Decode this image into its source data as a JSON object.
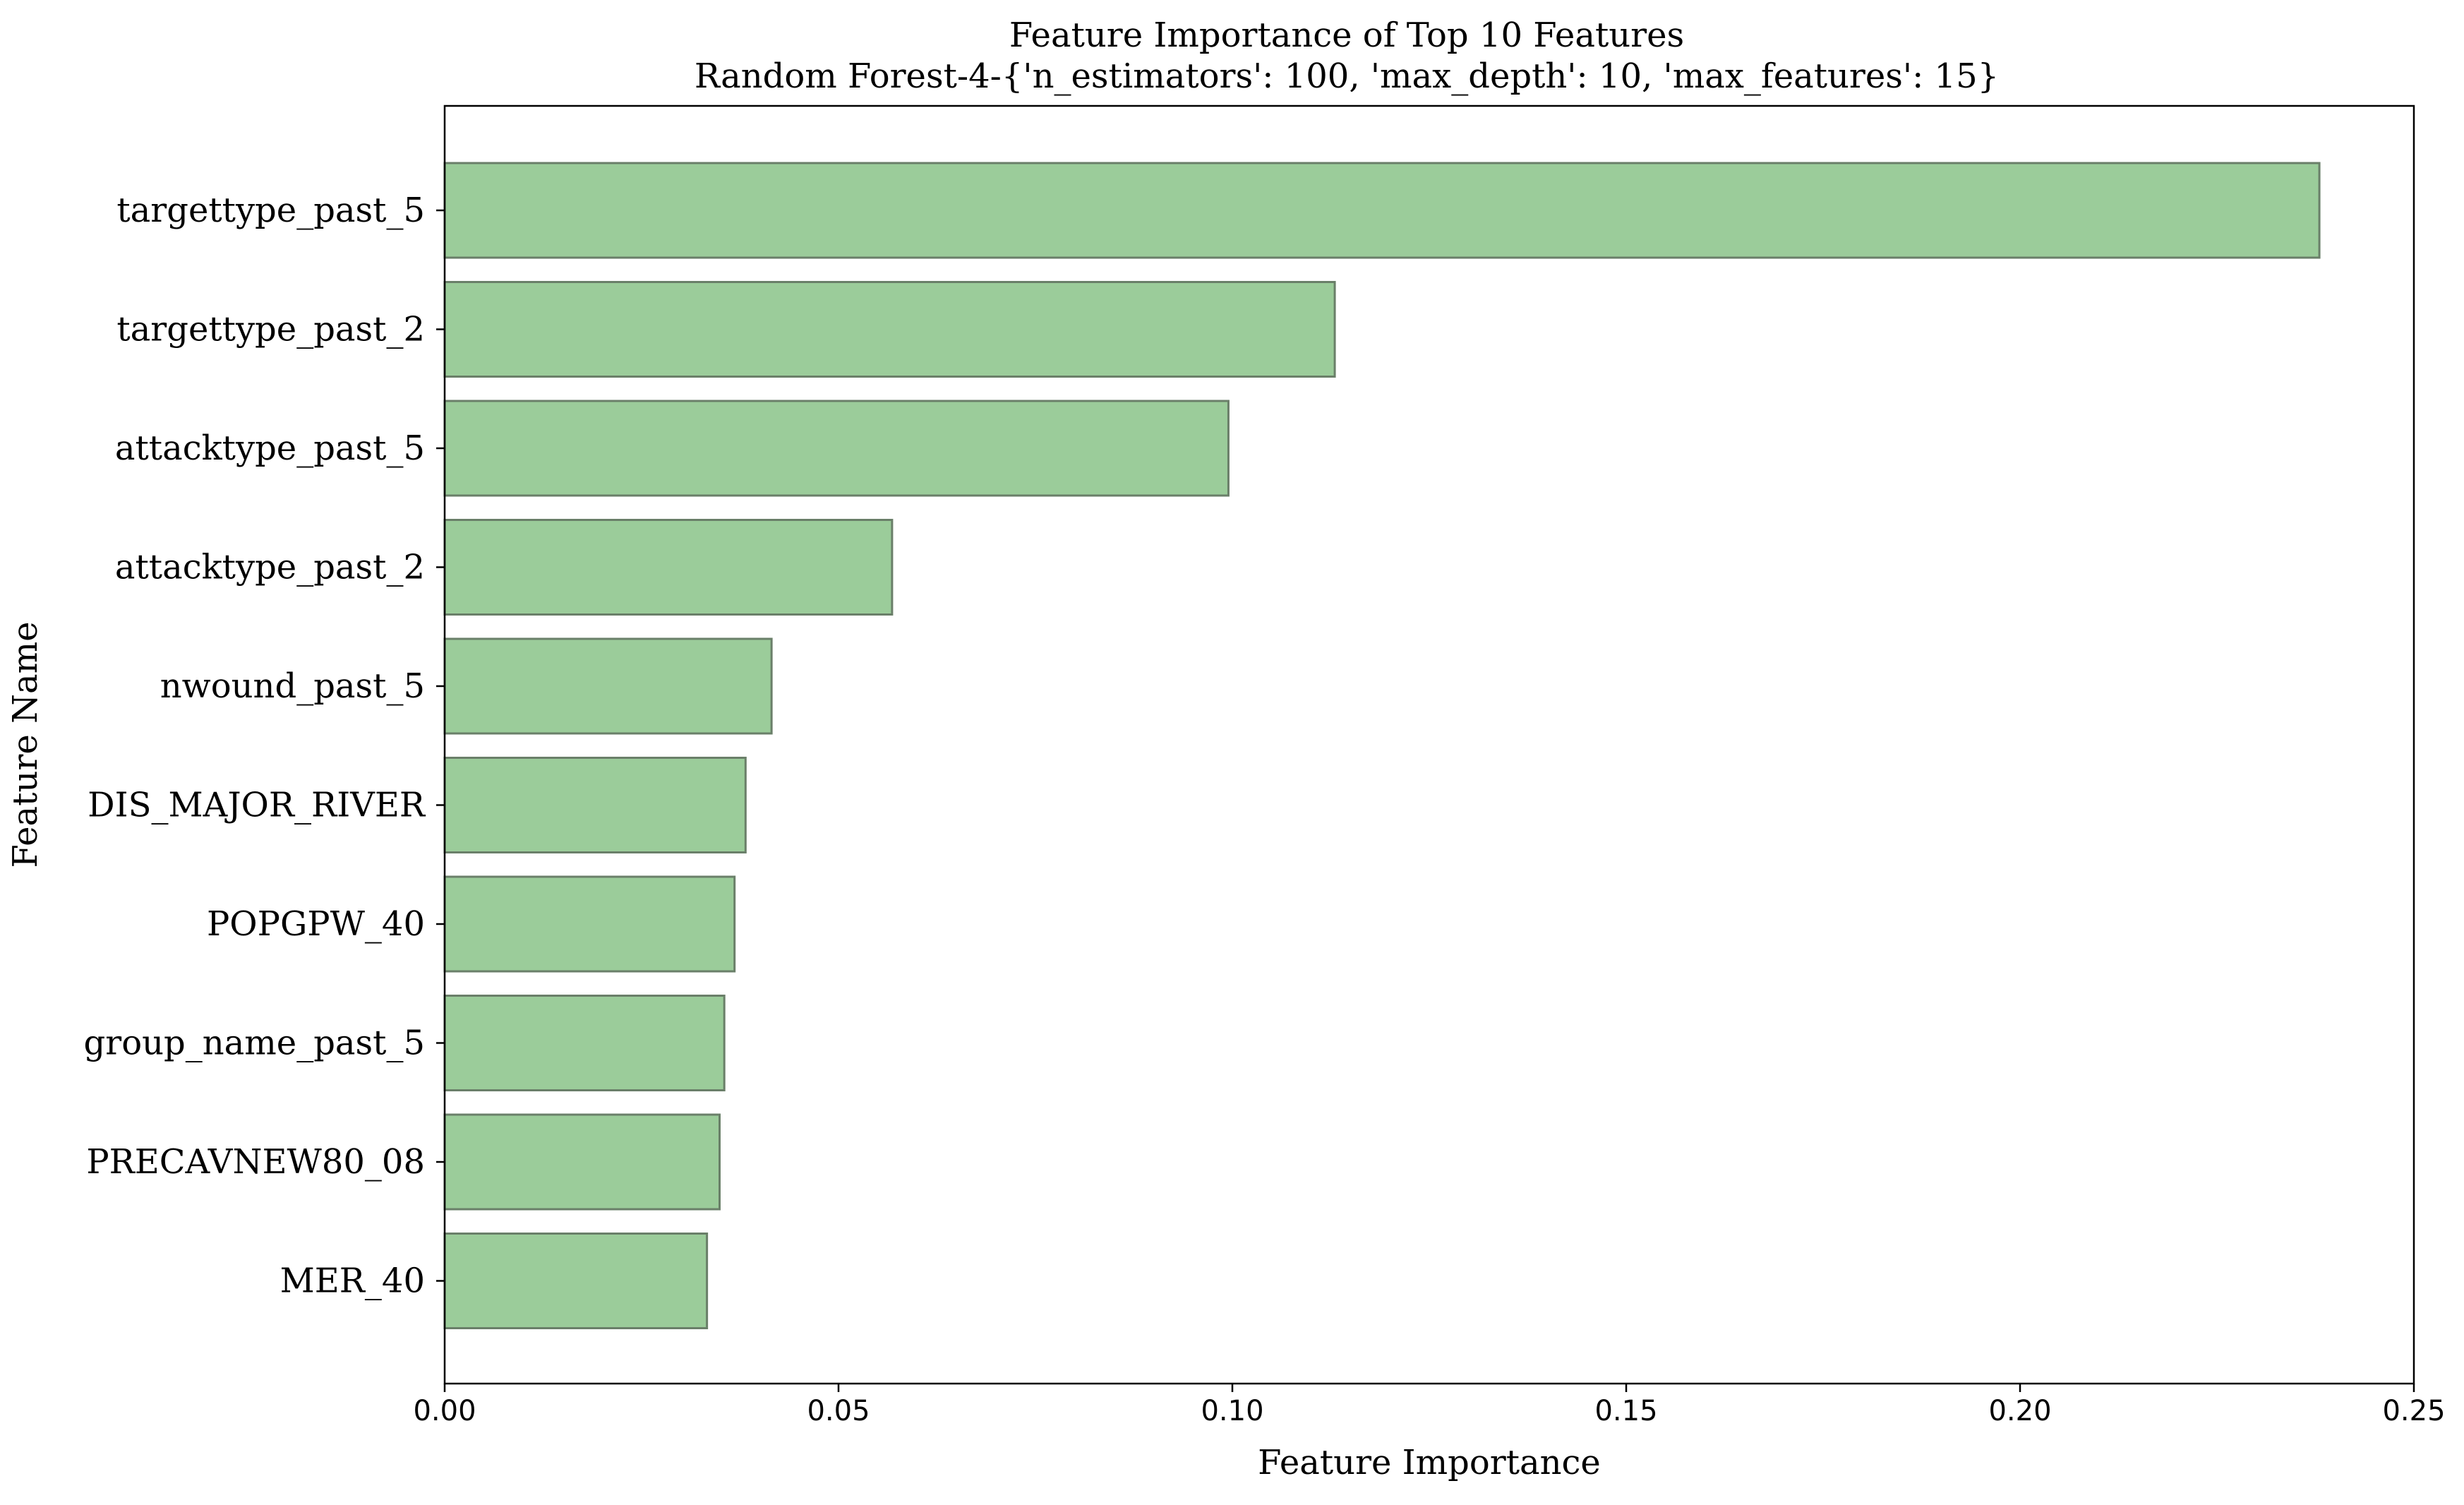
{
  "chart_data": {
    "type": "bar",
    "orientation": "horizontal",
    "title": "Feature Importance of Top 10 Features",
    "subtitle": "Random Forest-4-{'n_estimators': 100, 'max_depth': 10, 'max_features': 15}",
    "xlabel": "Feature Importance",
    "ylabel": "Feature Name",
    "categories": [
      "targettype_past_5",
      "targettype_past_2",
      "attacktype_past_5",
      "attacktype_past_2",
      "nwound_past_5",
      "DIS_MAJOR_RIVER",
      "POPGPW_40",
      "group_name_past_5",
      "PRECAVNEW80_08",
      "MER_40"
    ],
    "values": [
      0.238,
      0.113,
      0.0995,
      0.0568,
      0.0415,
      0.0382,
      0.0368,
      0.0355,
      0.0349,
      0.0333
    ],
    "xlim": [
      0,
      0.25
    ],
    "xticks": [
      "0.00",
      "0.05",
      "0.10",
      "0.15",
      "0.20",
      "0.25"
    ],
    "grid": false,
    "colors": {
      "bar_fill": "#9bcc9a",
      "bar_edge": "#6a7f69",
      "axis": "#000000"
    }
  }
}
